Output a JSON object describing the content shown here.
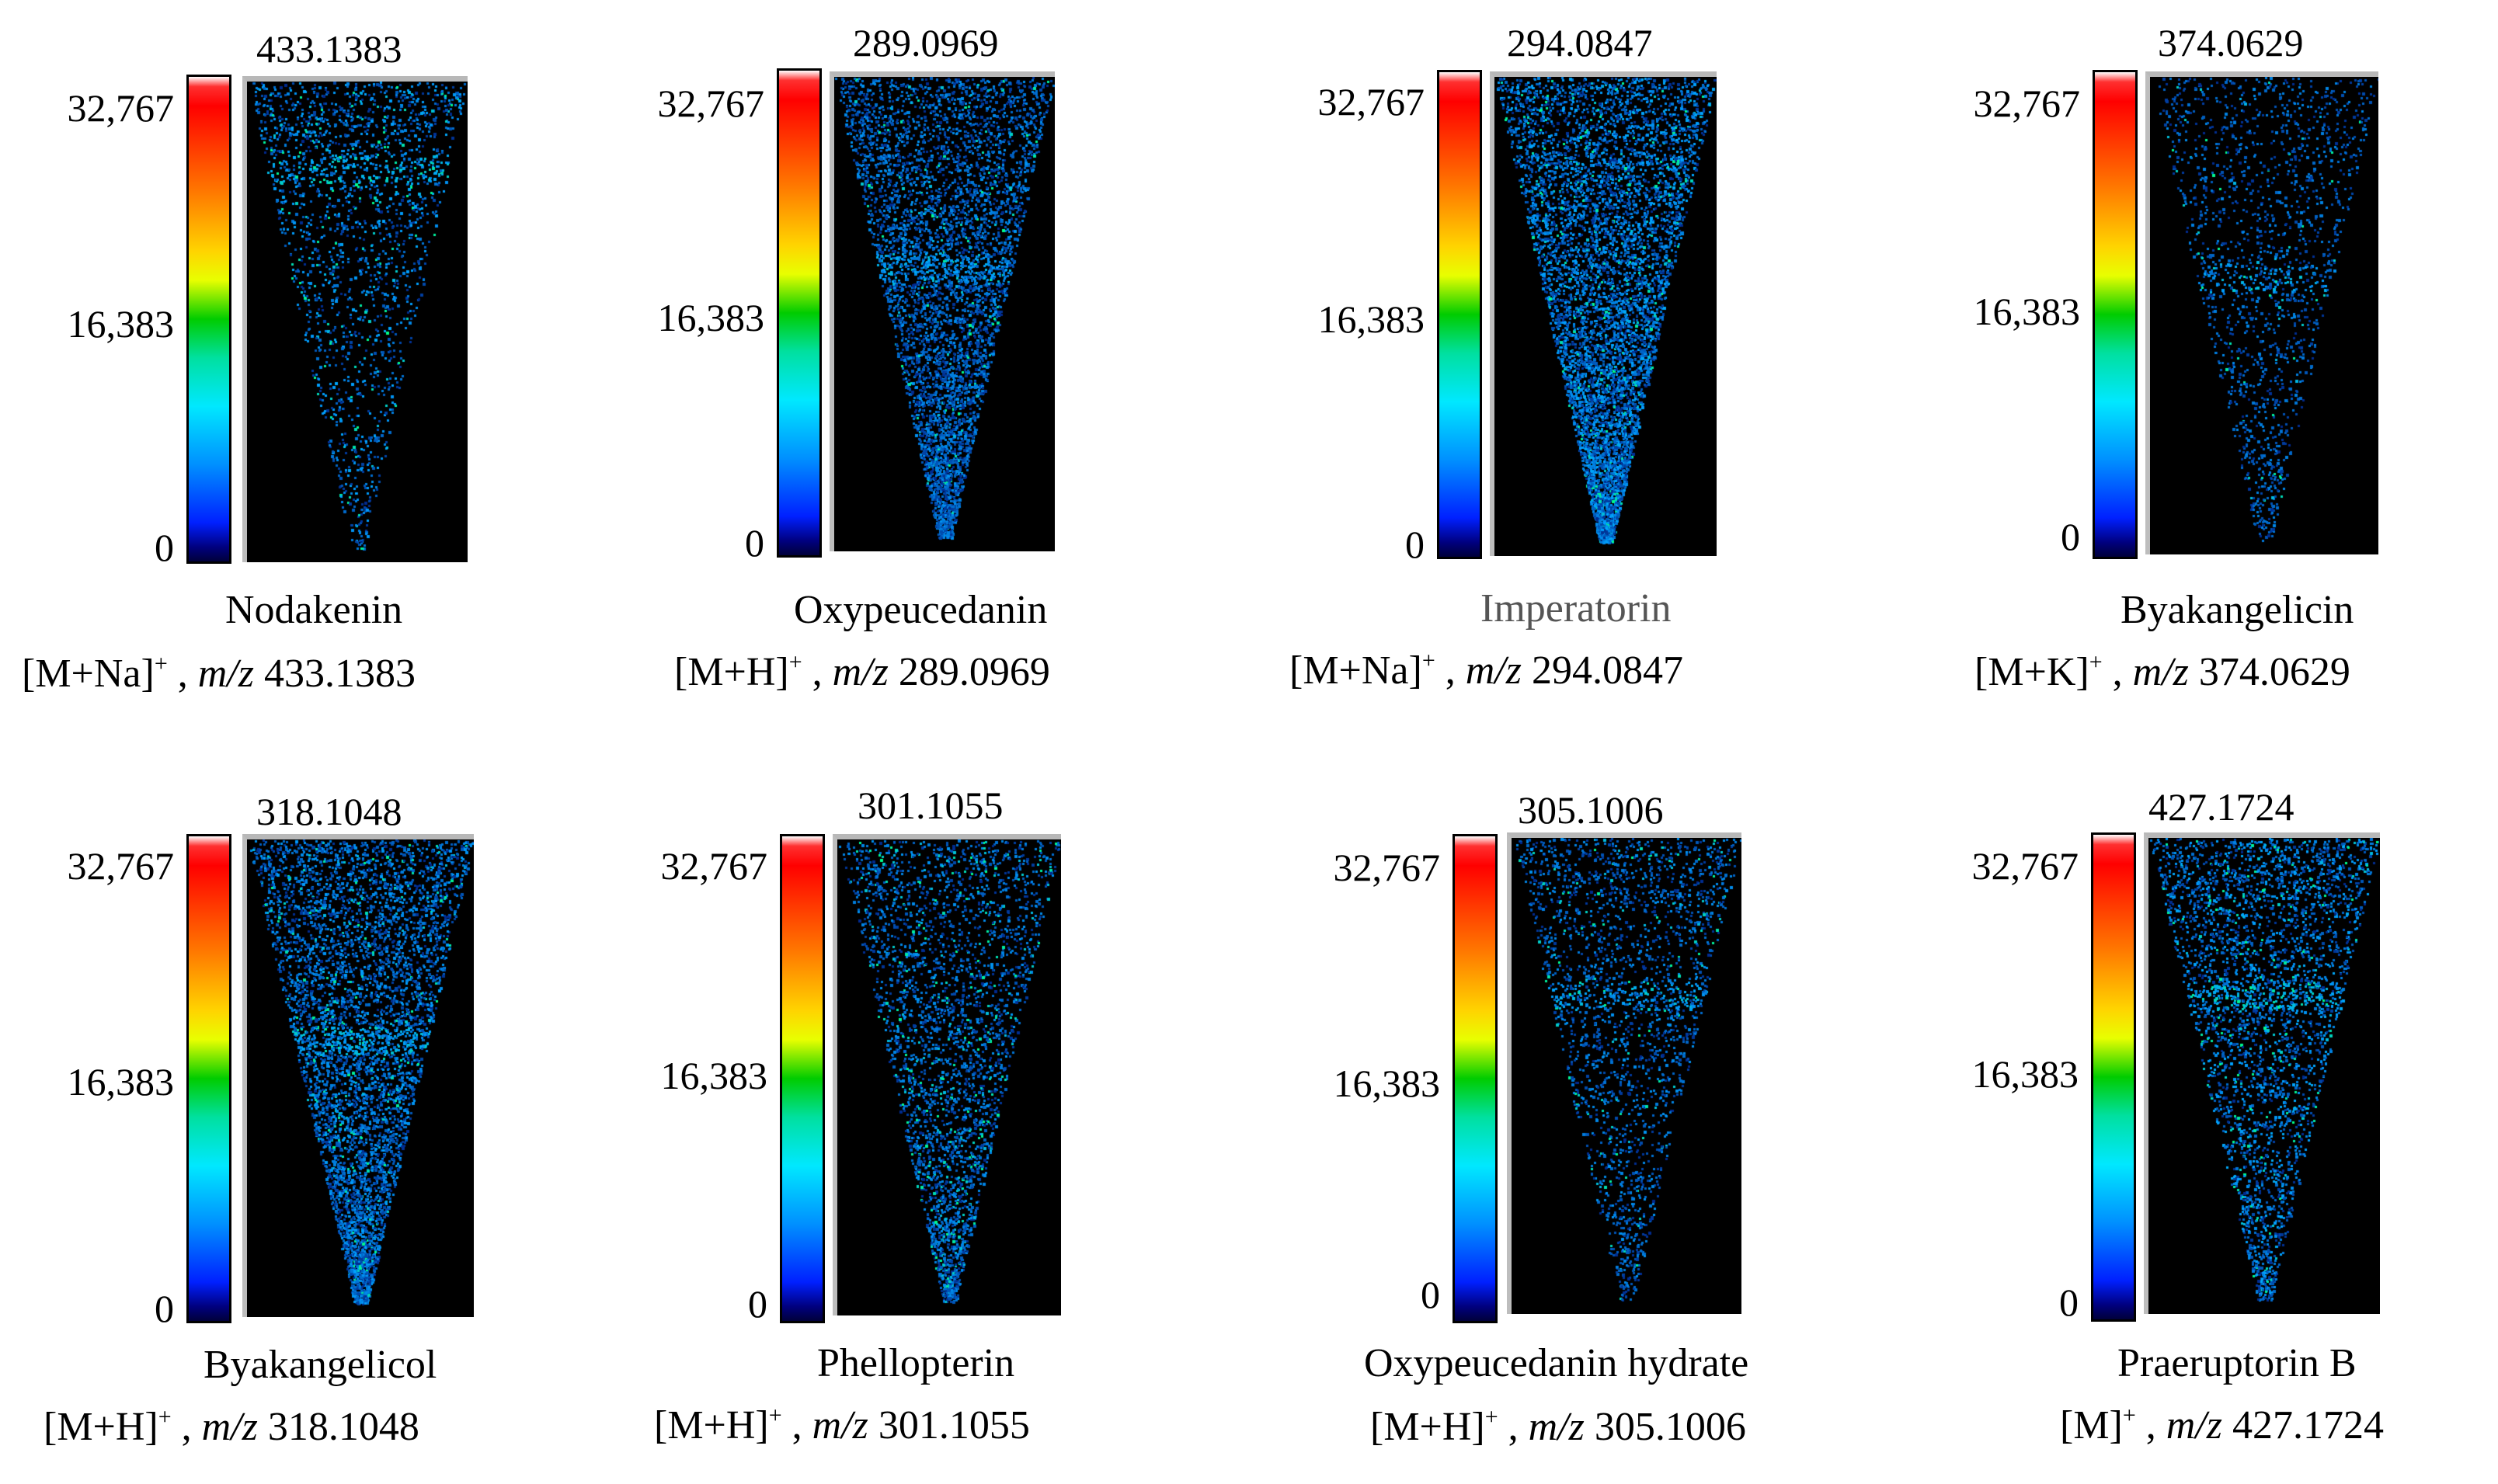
{
  "figure": {
    "panels": [
      {
        "mz_label": "433.1383",
        "compound": "Nodakenin",
        "adduct": "[M+Na]",
        "charge": "+",
        "mz_prefix": "m/z",
        "mz_value": "433.1383",
        "max": "32,767",
        "mid": "16,383",
        "min": "0"
      },
      {
        "mz_label": "289.0969",
        "compound": "Oxypeucedanin",
        "adduct": "[M+H]",
        "charge": "+",
        "mz_prefix": "m/z",
        "mz_value": "289.0969",
        "max": "32,767",
        "mid": "16,383",
        "min": "0"
      },
      {
        "mz_label": "294.0847",
        "compound": "Imperatorin",
        "adduct": "[M+Na]",
        "charge": "+",
        "mz_prefix": "m/z",
        "mz_value": "294.0847",
        "max": "32,767",
        "mid": "16,383",
        "min": "0"
      },
      {
        "mz_label": "374.0629",
        "compound": "Byakangelicin",
        "adduct": "[M+K]",
        "charge": "+",
        "mz_prefix": "m/z",
        "mz_value": "374.0629",
        "max": "32,767",
        "mid": "16,383",
        "min": "0"
      },
      {
        "mz_label": "318.1048",
        "compound": "Byakangelicol",
        "adduct": "[M+H]",
        "charge": "+",
        "mz_prefix": "m/z",
        "mz_value": "318.1048",
        "max": "32,767",
        "mid": "16,383",
        "min": "0"
      },
      {
        "mz_label": "301.1055",
        "compound": "Phellopterin",
        "adduct": "[M+H]",
        "charge": "+",
        "mz_prefix": "m/z",
        "mz_value": "301.1055",
        "max": "32,767",
        "mid": "16,383",
        "min": "0"
      },
      {
        "mz_label": "305.1006",
        "compound": "Oxypeucedanin hydrate",
        "adduct": "[M+H]",
        "charge": "+",
        "mz_prefix": "m/z",
        "mz_value": "305.1006",
        "max": "32,767",
        "mid": "16,383",
        "min": "0"
      },
      {
        "mz_label": "427.1724",
        "compound": "Praeruptorin B",
        "adduct": "[M]",
        "charge": "+",
        "mz_prefix": "m/z",
        "mz_value": "427.1724",
        "max": "32,767",
        "mid": "16,383",
        "min": "0"
      }
    ],
    "colorbar_colors": [
      "#ffffff",
      "#ff0000",
      "#ff7a00",
      "#ffd400",
      "#00cc00",
      "#00e8ff",
      "#0090ff",
      "#0020ff",
      "#00003a"
    ]
  }
}
